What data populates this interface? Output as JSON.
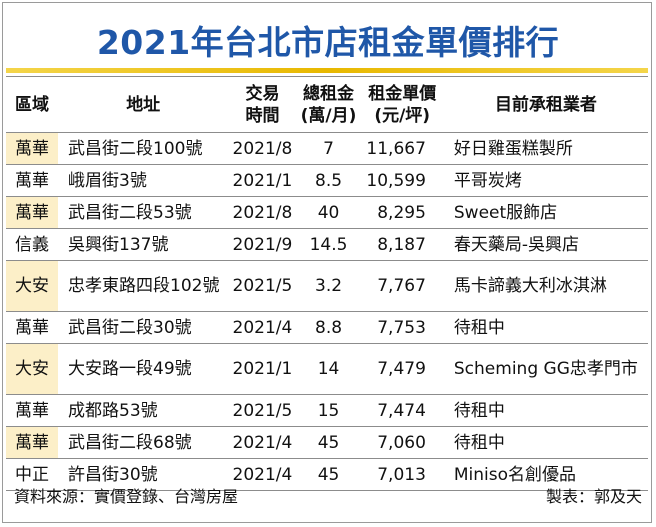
{
  "title": "2021年台北市店租金單價排行",
  "headers": {
    "district": "區域",
    "address": "地址",
    "time_line1": "交易",
    "time_line2": "時間",
    "rent_line1": "總租金",
    "rent_line2": "(萬/月)",
    "price_line1": "租金單價",
    "price_line2": "(元/坪)",
    "tenant": "目前承租業者"
  },
  "rows": [
    {
      "district": "萬華",
      "address": "武昌街二段100號",
      "time": "2021/8",
      "rent": "7",
      "price": "11,667",
      "tenant": "好日雞蛋糕製所"
    },
    {
      "district": "萬華",
      "address": "峨眉街3號",
      "time": "2021/1",
      "rent": "8.5",
      "price": "10,599",
      "tenant": "平哥炭烤"
    },
    {
      "district": "萬華",
      "address": "武昌街二段53號",
      "time": "2021/8",
      "rent": "40",
      "price": "8,295",
      "tenant": "Sweet服飾店"
    },
    {
      "district": "信義",
      "address": "吳興街137號",
      "time": "2021/9",
      "rent": "14.5",
      "price": "8,187",
      "tenant": "春天藥局-吳興店"
    },
    {
      "district": "大安",
      "address": "忠孝東路四段102號",
      "time": "2021/5",
      "rent": "3.2",
      "price": "7,767",
      "tenant": "馬卡諦義大利冰淇淋"
    },
    {
      "district": "萬華",
      "address": "武昌街二段30號",
      "time": "2021/4",
      "rent": "8.8",
      "price": "7,753",
      "tenant": "待租中"
    },
    {
      "district": "大安",
      "address": "大安路一段49號",
      "time": "2021/1",
      "rent": "14",
      "price": "7,479",
      "tenant": "Scheming GG忠孝門市"
    },
    {
      "district": "萬華",
      "address": "成都路53號",
      "time": "2021/5",
      "rent": "15",
      "price": "7,474",
      "tenant": "待租中"
    },
    {
      "district": "萬華",
      "address": "武昌街二段68號",
      "time": "2021/4",
      "rent": "45",
      "price": "7,060",
      "tenant": "待租中"
    },
    {
      "district": "中正",
      "address": "許昌街30號",
      "time": "2021/4",
      "rent": "45",
      "price": "7,013",
      "tenant": "Miniso名創優品"
    }
  ],
  "footer": {
    "source": "資料來源：實價登錄、台灣房屋",
    "author": "製表：郭及天"
  }
}
